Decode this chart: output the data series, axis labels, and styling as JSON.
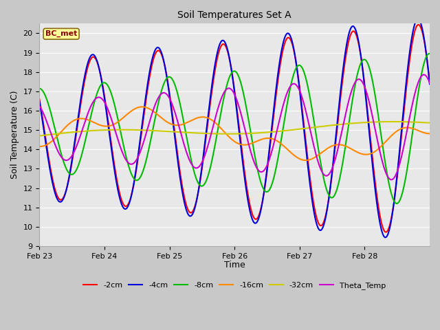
{
  "title": "Soil Temperatures Set A",
  "xlabel": "Time",
  "ylabel": "Soil Temperature (C)",
  "ylim": [
    9.0,
    20.5
  ],
  "yticks": [
    9.0,
    10.0,
    11.0,
    12.0,
    13.0,
    14.0,
    15.0,
    16.0,
    17.0,
    18.0,
    19.0,
    20.0
  ],
  "fig_bg_color": "#c8c8c8",
  "plot_bg_color": "#e8e8e8",
  "annotation_text": "BC_met",
  "annotation_color": "#8B0000",
  "annotation_bg": "#ffff99",
  "annotation_border": "#8B6914",
  "series": {
    "-2cm": {
      "color": "#ff0000",
      "lw": 1.5
    },
    "-4cm": {
      "color": "#0000dd",
      "lw": 1.5
    },
    "-8cm": {
      "color": "#00bb00",
      "lw": 1.5
    },
    "-16cm": {
      "color": "#ff8800",
      "lw": 1.5
    },
    "-32cm": {
      "color": "#cccc00",
      "lw": 1.5
    },
    "Theta_Temp": {
      "color": "#cc00cc",
      "lw": 1.5
    }
  },
  "legend_order": [
    "-2cm",
    "-4cm",
    "-8cm",
    "-16cm",
    "-32cm",
    "Theta_Temp"
  ],
  "xtick_labels": [
    "Feb 23",
    "Feb 24",
    "Feb 25",
    "Feb 26",
    "Feb 27",
    "Feb 28"
  ],
  "xtick_positions": [
    0,
    24,
    48,
    72,
    96,
    120
  ],
  "xlim": [
    0,
    144
  ]
}
